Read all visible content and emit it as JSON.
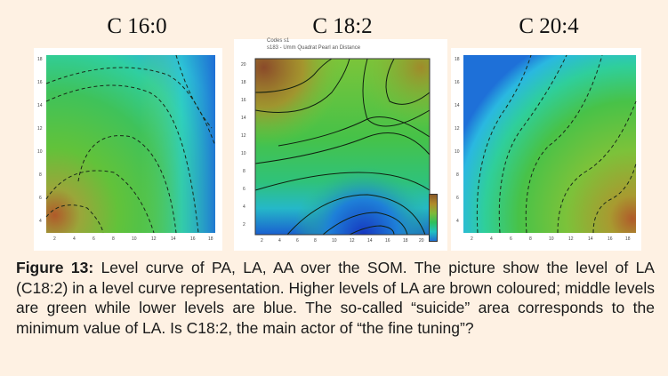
{
  "panels": [
    {
      "title": "C 16:0"
    },
    {
      "title": "C 18:2"
    },
    {
      "title": "C 20:4"
    }
  ],
  "middle_panel_header": {
    "line1": "Codes s1",
    "line2": "s183 - Umm Quadrat Pearl an Distance"
  },
  "caption": {
    "label": "Figure 13:",
    "text": " Level curve of PA, LA, AA over the SOM. The picture show the level of LA (C18:2) in a level curve representation. Higher levels of LA are brown coloured; middle levels are green while lower levels are blue. The so-called “suicide” area corresponds to the minimum value of LA. Is C18:2, the main actor of “the fine tuning”?"
  }
}
